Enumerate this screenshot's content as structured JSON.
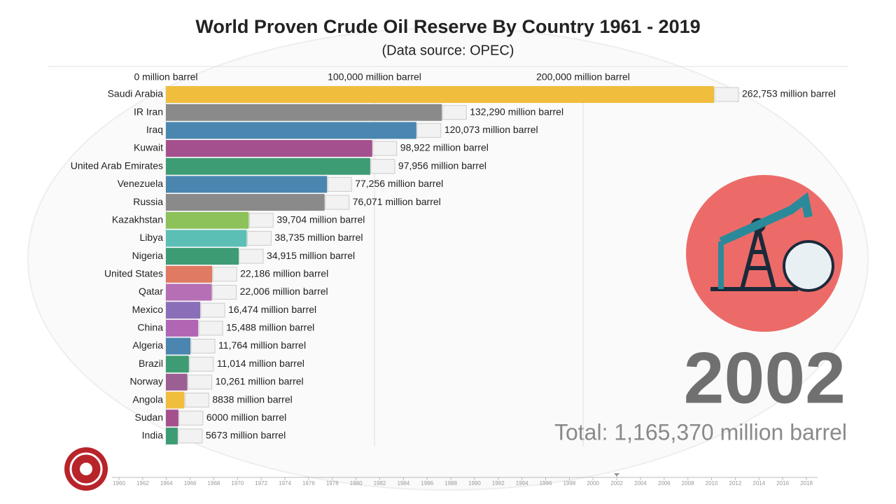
{
  "chart_data": {
    "type": "bar",
    "title": "World Proven Crude Oil Reserve By Country 1961 - 2019",
    "subtitle": "(Data source: OPEC)",
    "categories": [
      "Saudi Arabia",
      "IR Iran",
      "Iraq",
      "Kuwait",
      "United Arab Emirates",
      "Venezuela",
      "Russia",
      "Kazakhstan",
      "Libya",
      "Nigeria",
      "United States",
      "Qatar",
      "Mexico",
      "China",
      "Algeria",
      "Brazil",
      "Norway",
      "Angola",
      "Sudan",
      "India"
    ],
    "values": [
      262753,
      132290,
      120073,
      98922,
      97956,
      77256,
      76071,
      39704,
      38735,
      34915,
      22186,
      22006,
      16474,
      15488,
      11764,
      11014,
      10261,
      8838,
      6000,
      5673
    ],
    "value_labels": [
      "262,753 million barrel",
      "132,290 million barrel",
      "120,073 million barrel",
      "98,922 million barrel",
      "97,956 million barrel",
      "77,256 million barrel",
      "76,071 million barrel",
      "39,704 million barrel",
      "38,735 million barrel",
      "34,915 million barrel",
      "22,186 million barrel",
      "22,006 million barrel",
      "16,474 million barrel",
      "15,488 million barrel",
      "11,764 million barrel",
      "11,014 million barrel",
      "10,261 million barrel",
      "8838 million barrel",
      "6000 million barrel",
      "5673 million barrel"
    ],
    "colors": [
      "#f0bd3c",
      "#8a8a8a",
      "#4a86b0",
      "#a5508e",
      "#3e9c74",
      "#4a86b0",
      "#8a8a8a",
      "#8dc25a",
      "#5bbfb5",
      "#3e9c74",
      "#e07a63",
      "#b66fb5",
      "#8a6fb8",
      "#b066b3",
      "#4a86b0",
      "#3e9c74",
      "#9b5f93",
      "#f0bd3c",
      "#a5508e",
      "#3e9c74"
    ],
    "xlim": [
      0,
      300000
    ],
    "xticks": [
      {
        "value": 0,
        "label": "0 million barrel"
      },
      {
        "value": 100000,
        "label": "100,000 million barrel"
      },
      {
        "value": 200000,
        "label": "200,000 million barrel"
      }
    ],
    "grid": true,
    "year": 2002,
    "total_label": "Total: 1,165,370 million barrel",
    "timeline_lim": [
      1960,
      2018
    ],
    "timeline_ticks": [
      1960,
      1962,
      1964,
      1966,
      1968,
      1970,
      1972,
      1974,
      1976,
      1978,
      1980,
      1982,
      1984,
      1986,
      1988,
      1990,
      1992,
      1994,
      1996,
      1998,
      2000,
      2002,
      2004,
      2006,
      2008,
      2010,
      2012,
      2014,
      2016,
      2018
    ]
  }
}
